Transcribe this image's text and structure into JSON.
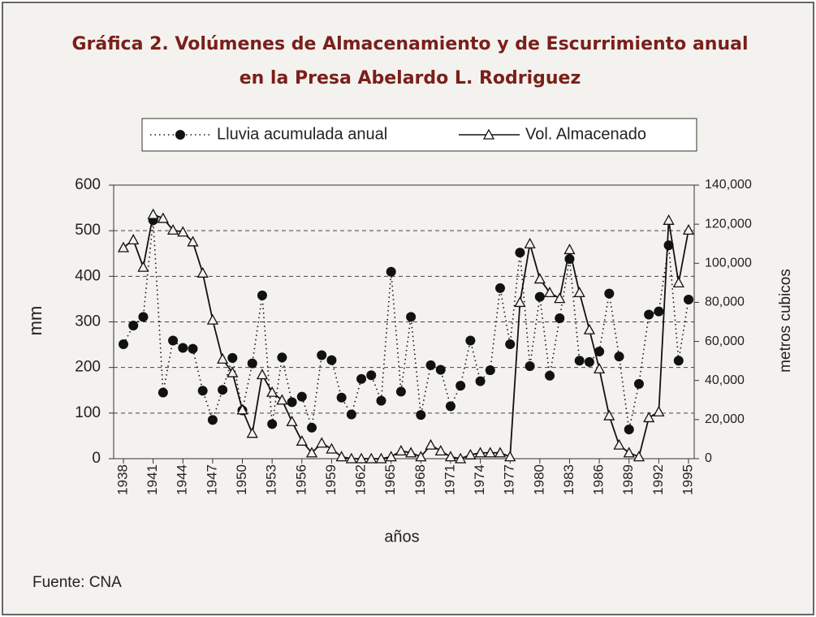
{
  "chart_data": {
    "type": "line",
    "title": [
      "Gráfica 2.  Volúmenes de Almacenamiento y de Escurrimiento anual",
      "en la Presa Abelardo L. Rodriguez"
    ],
    "x_label": "años",
    "y_label": "mm",
    "y2_label": "metros cubicos",
    "source": "Fuente: CNA",
    "x": [
      1938,
      1939,
      1940,
      1941,
      1942,
      1943,
      1944,
      1945,
      1946,
      1947,
      1948,
      1949,
      1950,
      1951,
      1952,
      1953,
      1954,
      1955,
      1956,
      1957,
      1958,
      1959,
      1960,
      1961,
      1962,
      1963,
      1964,
      1965,
      1966,
      1967,
      1968,
      1969,
      1970,
      1971,
      1972,
      1973,
      1974,
      1975,
      1976,
      1977,
      1978,
      1979,
      1980,
      1981,
      1982,
      1983,
      1984,
      1985,
      1986,
      1987,
      1988,
      1989,
      1990,
      1991,
      1992,
      1993,
      1994,
      1995
    ],
    "xlim": [
      1938,
      1995
    ],
    "xticks": [
      1938,
      1941,
      1944,
      1947,
      1950,
      1953,
      1956,
      1959,
      1962,
      1965,
      1968,
      1971,
      1974,
      1977,
      1980,
      1983,
      1986,
      1989,
      1992,
      1995
    ],
    "ylim": [
      0,
      600
    ],
    "yticks": [
      0,
      100,
      200,
      300,
      400,
      500,
      600
    ],
    "y2lim": [
      0,
      140000
    ],
    "y2ticks": [
      0,
      {
        "value": 20000,
        "label": "20,000"
      },
      {
        "value": 40000,
        "label": "40,000"
      },
      {
        "value": 60000,
        "label": "60,000"
      },
      {
        "value": 80000,
        "label": "80,000"
      },
      {
        "value": 100000,
        "label": "100,000"
      },
      {
        "value": 120000,
        "label": "120,000"
      },
      {
        "value": 140000,
        "label": "140,000"
      }
    ],
    "grid": true,
    "series": [
      {
        "name": "Lluvia acumulada anual",
        "color": "#111111",
        "style": "dotted",
        "marker": "circle",
        "values": [
          251,
          292,
          311,
          523,
          145,
          259,
          243,
          241,
          149,
          85,
          151,
          221,
          106,
          209,
          358,
          76,
          222,
          124,
          136,
          68,
          227,
          216,
          134,
          97,
          175,
          183,
          127,
          410,
          147,
          311,
          96,
          205,
          195,
          115,
          160,
          259,
          170,
          194,
          374,
          251,
          452,
          203,
          355,
          182,
          308,
          438,
          215,
          212,
          235,
          362,
          224,
          64,
          164,
          316,
          323,
          468,
          215,
          349
        ]
      },
      {
        "name": "Vol. Almacenado",
        "color": "#111111",
        "style": "solid",
        "marker": "triangle",
        "axis": "y2",
        "values": [
          108000,
          112000,
          98000,
          125000,
          123000,
          117000,
          116000,
          111000,
          95000,
          71000,
          51000,
          44000,
          25000,
          13000,
          43000,
          34000,
          30000,
          19000,
          9000,
          3000,
          8000,
          5000,
          1000,
          0,
          0,
          0,
          0,
          1000,
          4000,
          3000,
          1000,
          7000,
          4000,
          1000,
          0,
          2000,
          3000,
          3000,
          3000,
          1000,
          80000,
          110000,
          92000,
          85000,
          82000,
          107000,
          85000,
          66000,
          46000,
          22000,
          7000,
          3000,
          1000,
          21000,
          24000,
          122000,
          90000,
          117000
        ]
      }
    ]
  }
}
